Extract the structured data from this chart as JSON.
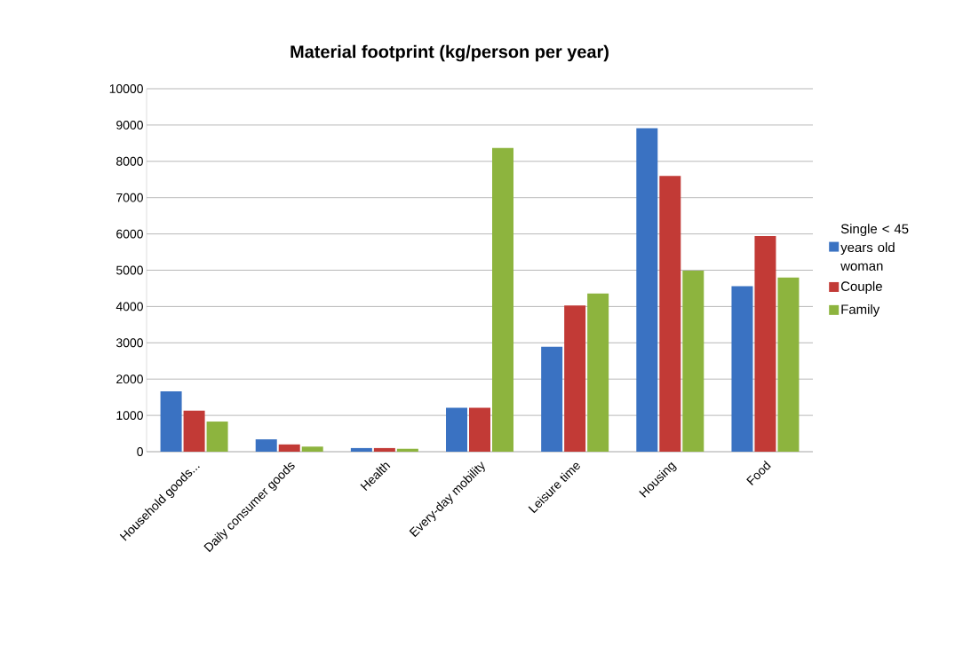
{
  "chart_data": {
    "type": "bar",
    "title": "Material footprint (kg/person per year)",
    "categories": [
      "Household goods...",
      "Daily consumer goods",
      "Health",
      "Every-day mobility",
      "Leisure time",
      "Housing",
      "Food"
    ],
    "series": [
      {
        "name": "Single < 45 years old woman",
        "color": "#3a72c2",
        "values": [
          1660,
          340,
          100,
          1210,
          2890,
          8910,
          4560
        ]
      },
      {
        "name": "Couple",
        "color": "#c23a36",
        "values": [
          1130,
          200,
          100,
          1210,
          4030,
          7600,
          5940
        ]
      },
      {
        "name": "Family",
        "color": "#8db43e",
        "values": [
          830,
          140,
          80,
          8370,
          4360,
          4990,
          4800
        ]
      }
    ],
    "ylim": [
      0,
      10000
    ],
    "yticks": [
      0,
      1000,
      2000,
      3000,
      4000,
      5000,
      6000,
      7000,
      8000,
      9000,
      10000
    ],
    "grid": "y",
    "legend": "right"
  }
}
